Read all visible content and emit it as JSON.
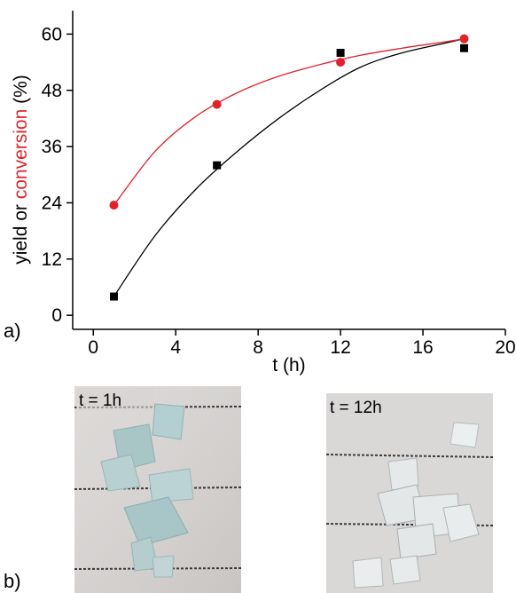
{
  "chart_data": {
    "type": "scatter",
    "title": "",
    "xlabel": "t (h)",
    "ylabel_parts": [
      "yield or ",
      "conversion",
      " (%)"
    ],
    "xlim": [
      -1,
      20
    ],
    "ylim": [
      -3,
      65
    ],
    "xticks": [
      0,
      4,
      8,
      12,
      16,
      20
    ],
    "yticks": [
      0,
      12,
      24,
      36,
      48,
      60
    ],
    "grid": false,
    "series": [
      {
        "marker": "square",
        "color": "#000000",
        "x": [
          1,
          6,
          12,
          18
        ],
        "y": [
          4,
          32,
          56,
          57
        ],
        "fit": {
          "x": [
            1,
            3,
            5,
            7,
            9,
            11,
            13,
            15,
            17,
            18
          ],
          "y": [
            4,
            17,
            27,
            35,
            42,
            48,
            53,
            56,
            58,
            59
          ]
        }
      },
      {
        "marker": "circle",
        "color": "#e0222a",
        "x": [
          1,
          6,
          12,
          18
        ],
        "y": [
          23.5,
          45,
          54,
          59
        ],
        "fit": {
          "x": [
            1,
            3,
            5,
            7,
            9,
            11,
            13,
            15,
            17,
            18
          ],
          "y": [
            23.5,
            35,
            42.5,
            47.5,
            51,
            53.5,
            55.5,
            57,
            58.3,
            59
          ]
        }
      }
    ]
  },
  "panels": {
    "a": "a)",
    "b": "b)"
  },
  "photos": [
    {
      "label": "t = 1h"
    },
    {
      "label": "t = 12h"
    }
  ],
  "colors": {
    "conversion_text": "#e0222a",
    "axis": "#000000"
  }
}
